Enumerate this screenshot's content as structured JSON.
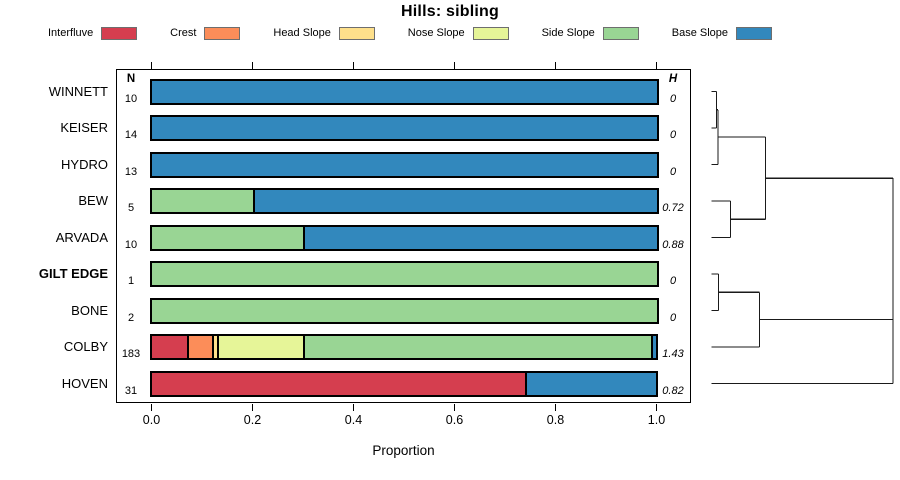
{
  "title": "Hills: sibling",
  "legend": {
    "items": [
      {
        "label": "Interfluve",
        "color": "#D53E4F"
      },
      {
        "label": "Crest",
        "color": "#FC8D59"
      },
      {
        "label": "Head Slope",
        "color": "#FEE08B"
      },
      {
        "label": "Nose Slope",
        "color": "#E6F598"
      },
      {
        "label": "Side Slope",
        "color": "#99D594"
      },
      {
        "label": "Base Slope",
        "color": "#3288BD"
      }
    ]
  },
  "columns": {
    "n_header": "N",
    "h_header": "H"
  },
  "x_axis": {
    "label": "Proportion",
    "tick_labels": [
      "0.0",
      "0.2",
      "0.4",
      "0.6",
      "0.8",
      "1.0"
    ],
    "tick_values": [
      0,
      0.2,
      0.4,
      0.6,
      0.8,
      1.0
    ]
  },
  "chart_data": {
    "type": "bar",
    "subtype": "horizontal-stacked-proportion-with-dendrogram",
    "title": "Hills: sibling",
    "xlabel": "Proportion",
    "xlim": [
      0,
      1
    ],
    "grid": false,
    "legend_position": "top",
    "categories": [
      "Interfluve",
      "Crest",
      "Head Slope",
      "Nose Slope",
      "Side Slope",
      "Base Slope"
    ],
    "colors": [
      "#D53E4F",
      "#FC8D59",
      "#FEE08B",
      "#E6F598",
      "#99D594",
      "#3288BD"
    ],
    "rows": [
      {
        "name": "WINNETT",
        "n": 10,
        "h": "0",
        "bold": false,
        "proportions": [
          0,
          0,
          0,
          0,
          0,
          1.0
        ]
      },
      {
        "name": "KEISER",
        "n": 14,
        "h": "0",
        "bold": false,
        "proportions": [
          0,
          0,
          0,
          0,
          0,
          1.0
        ]
      },
      {
        "name": "HYDRO",
        "n": 13,
        "h": "0",
        "bold": false,
        "proportions": [
          0,
          0,
          0,
          0,
          0,
          1.0
        ]
      },
      {
        "name": "BEW",
        "n": 5,
        "h": "0.72",
        "bold": false,
        "proportions": [
          0,
          0,
          0,
          0,
          0.2,
          0.8
        ]
      },
      {
        "name": "ARVADA",
        "n": 10,
        "h": "0.88",
        "bold": false,
        "proportions": [
          0,
          0,
          0,
          0,
          0.3,
          0.7
        ]
      },
      {
        "name": "GILT EDGE",
        "n": 1,
        "h": "0",
        "bold": true,
        "proportions": [
          0,
          0,
          0,
          0,
          1.0,
          0
        ]
      },
      {
        "name": "BONE",
        "n": 2,
        "h": "0",
        "bold": false,
        "proportions": [
          0,
          0,
          0,
          0,
          1.0,
          0
        ]
      },
      {
        "name": "COLBY",
        "n": 183,
        "h": "1.43",
        "bold": false,
        "proportions": [
          0.07,
          0.05,
          0.01,
          0.17,
          0.69,
          0.01
        ]
      },
      {
        "name": "HOVEN",
        "n": 31,
        "h": "0.82",
        "bold": false,
        "proportions": [
          0.74,
          0,
          0,
          0,
          0,
          0.26
        ]
      }
    ],
    "dendrogram": {
      "side": "right",
      "merges": [
        {
          "a": "WINNETT",
          "b": "KEISER",
          "height": 0.028
        },
        {
          "a": "#0",
          "b": "HYDRO",
          "height": 0.036
        },
        {
          "a": "BEW",
          "b": "ARVADA",
          "height": 0.105
        },
        {
          "a": "#1",
          "b": "#2",
          "height": 0.298
        },
        {
          "a": "GILT EDGE",
          "b": "BONE",
          "height": 0.039
        },
        {
          "a": "#4",
          "b": "COLBY",
          "height": 0.264
        },
        {
          "a": "#5",
          "b": "HOVEN",
          "height": 1.0
        },
        {
          "a": "#3",
          "b": "#6",
          "height": 1.0
        }
      ]
    }
  }
}
